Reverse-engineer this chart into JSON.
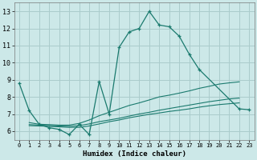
{
  "xlabel": "Humidex (Indice chaleur)",
  "bg_color": "#cce8e8",
  "grid_color": "#aacccc",
  "line_color": "#1a7a6e",
  "xlim": [
    -0.5,
    23.5
  ],
  "ylim": [
    5.5,
    13.5
  ],
  "xticks": [
    0,
    1,
    2,
    3,
    4,
    5,
    6,
    7,
    8,
    9,
    10,
    11,
    12,
    13,
    14,
    15,
    16,
    17,
    18,
    19,
    20,
    21,
    22,
    23
  ],
  "yticks": [
    6,
    7,
    8,
    9,
    10,
    11,
    12,
    13
  ],
  "line_max_x": [
    0,
    1,
    2,
    3,
    4,
    5,
    6,
    7,
    8,
    9,
    10,
    11,
    12,
    13,
    14,
    15,
    16,
    17,
    18,
    22,
    23
  ],
  "line_max_y": [
    8.8,
    7.2,
    6.4,
    6.2,
    6.1,
    5.8,
    6.4,
    5.8,
    8.9,
    7.0,
    10.9,
    11.8,
    12.0,
    13.0,
    12.2,
    12.1,
    11.55,
    10.5,
    9.6,
    7.3,
    7.25
  ],
  "line_mid1_x": [
    1,
    2,
    3,
    4,
    5,
    6,
    7,
    8,
    9,
    10,
    11,
    12,
    13,
    14,
    15,
    16,
    17,
    18,
    19,
    20,
    21,
    22
  ],
  "line_mid1_y": [
    6.5,
    6.4,
    6.38,
    6.35,
    6.35,
    6.45,
    6.65,
    6.9,
    7.1,
    7.3,
    7.5,
    7.65,
    7.82,
    8.0,
    8.1,
    8.22,
    8.35,
    8.5,
    8.62,
    8.75,
    8.82,
    8.88
  ],
  "line_mid2_x": [
    1,
    2,
    3,
    4,
    5,
    6,
    7,
    8,
    9,
    10,
    11,
    12,
    13,
    14,
    15,
    16,
    17,
    18,
    19,
    20,
    21,
    22
  ],
  "line_mid2_y": [
    6.38,
    6.35,
    6.32,
    6.3,
    6.28,
    6.32,
    6.42,
    6.55,
    6.65,
    6.75,
    6.88,
    7.0,
    7.1,
    7.22,
    7.32,
    7.42,
    7.52,
    7.62,
    7.72,
    7.8,
    7.88,
    7.93
  ],
  "line_min_x": [
    1,
    2,
    3,
    4,
    5,
    6,
    7,
    8,
    9,
    10,
    11,
    12,
    13,
    14,
    15,
    16,
    17,
    18,
    19,
    20,
    21,
    22
  ],
  "line_min_y": [
    6.32,
    6.3,
    6.28,
    6.25,
    6.22,
    6.22,
    6.3,
    6.42,
    6.55,
    6.65,
    6.78,
    6.88,
    6.98,
    7.06,
    7.15,
    7.22,
    7.3,
    7.4,
    7.48,
    7.55,
    7.6,
    7.65
  ]
}
